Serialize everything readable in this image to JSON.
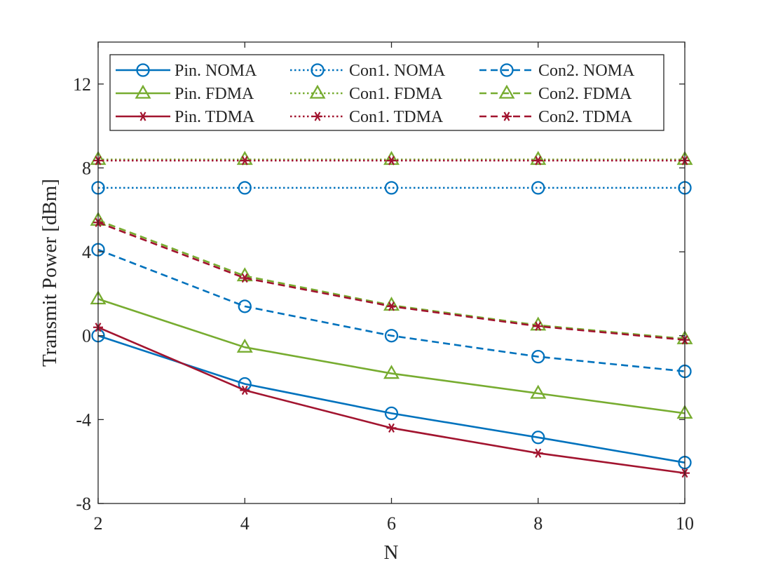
{
  "chart_data": {
    "type": "line",
    "title": "",
    "xlabel": "N",
    "ylabel": "Transmit Power [dBm]",
    "x": [
      2,
      4,
      6,
      8,
      10
    ],
    "xlim": [
      2,
      10
    ],
    "ylim": [
      -8,
      14
    ],
    "xticks": [
      2,
      4,
      6,
      8,
      10
    ],
    "yticks": [
      -8,
      -4,
      0,
      4,
      8,
      12
    ],
    "grid": false,
    "legend_position": "top",
    "legend_columns": 3,
    "series": [
      {
        "name": "Pin. NOMA",
        "color": "#0072BD",
        "linestyle": "solid",
        "marker": "circle",
        "values": [
          0.0,
          -2.3,
          -3.7,
          -4.85,
          -6.05
        ]
      },
      {
        "name": "Pin. FDMA",
        "color": "#77AC30",
        "linestyle": "solid",
        "marker": "triangle",
        "values": [
          1.75,
          -0.55,
          -1.8,
          -2.75,
          -3.7
        ]
      },
      {
        "name": "Pin. TDMA",
        "color": "#A2142F",
        "linestyle": "solid",
        "marker": "asterisk",
        "values": [
          0.4,
          -2.6,
          -4.4,
          -5.6,
          -6.55
        ]
      },
      {
        "name": "Con1. NOMA",
        "color": "#0072BD",
        "linestyle": "dotted",
        "marker": "circle",
        "values": [
          7.05,
          7.05,
          7.05,
          7.05,
          7.05
        ]
      },
      {
        "name": "Con1. FDMA",
        "color": "#77AC30",
        "linestyle": "dotted",
        "marker": "triangle",
        "values": [
          8.4,
          8.4,
          8.4,
          8.4,
          8.4
        ]
      },
      {
        "name": "Con1. TDMA",
        "color": "#A2142F",
        "linestyle": "dotted",
        "marker": "asterisk",
        "values": [
          8.35,
          8.35,
          8.35,
          8.35,
          8.35
        ]
      },
      {
        "name": "Con2. NOMA",
        "color": "#0072BD",
        "linestyle": "dashed",
        "marker": "circle",
        "values": [
          4.1,
          1.4,
          0.0,
          -1.0,
          -1.7
        ]
      },
      {
        "name": "Con2. FDMA",
        "color": "#77AC30",
        "linestyle": "dashed",
        "marker": "triangle",
        "values": [
          5.5,
          2.85,
          1.45,
          0.5,
          -0.15
        ]
      },
      {
        "name": "Con2. TDMA",
        "color": "#A2142F",
        "linestyle": "dashed",
        "marker": "asterisk",
        "values": [
          5.4,
          2.75,
          1.4,
          0.45,
          -0.2
        ]
      }
    ]
  }
}
